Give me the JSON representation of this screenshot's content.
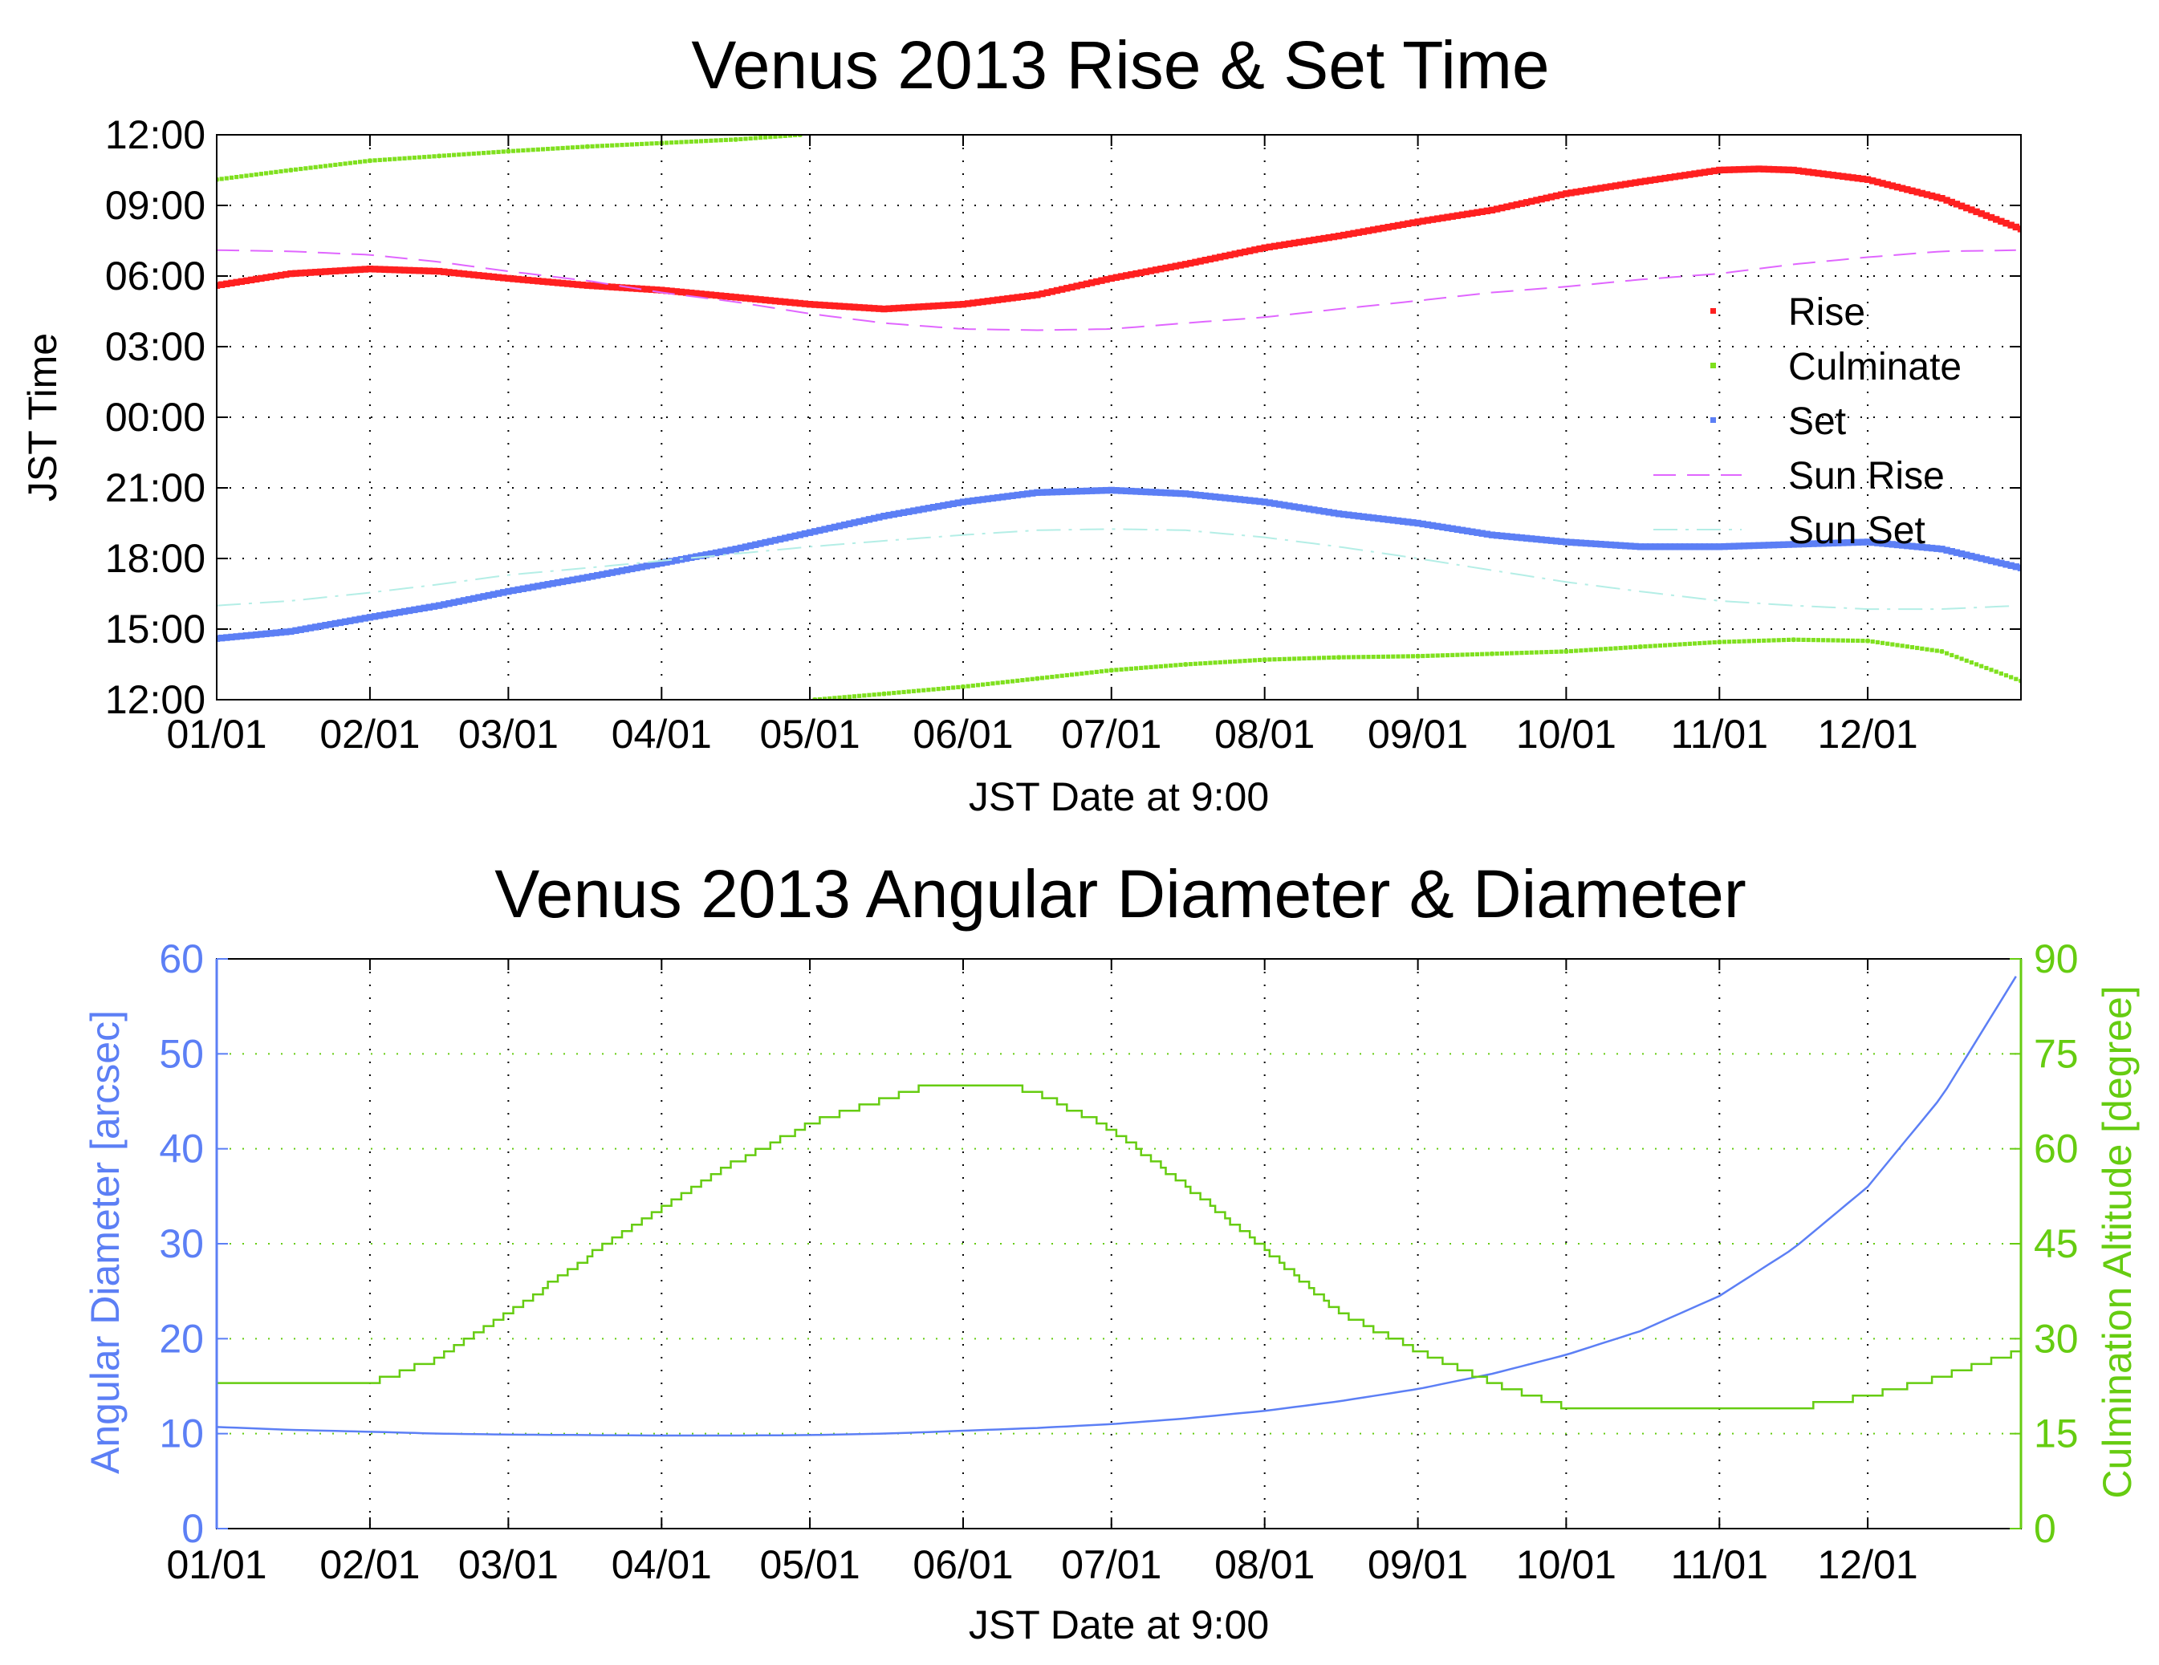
{
  "chart_data": [
    {
      "type": "line",
      "title": "Venus 2013 Rise & Set Time",
      "xlabel": "JST Date at 9:00",
      "ylabel": "JST Time",
      "x_tick_labels": [
        "01/01",
        "02/01",
        "03/01",
        "04/01",
        "05/01",
        "06/01",
        "07/01",
        "08/01",
        "09/01",
        "10/01",
        "11/01",
        "12/01"
      ],
      "x_tick_days": [
        0,
        31,
        59,
        90,
        120,
        151,
        181,
        212,
        243,
        273,
        304,
        334
      ],
      "x_range_days": [
        0,
        365
      ],
      "y_axis_note": "time of day; axis runs from 12:00 (bottom) through 00:00 up to 12:00 (top)",
      "y_tick_labels": [
        "12:00",
        "15:00",
        "18:00",
        "21:00",
        "00:00",
        "03:00",
        "06:00",
        "09:00",
        "12:00"
      ],
      "y_range_hours": [
        12,
        36
      ],
      "grid": true,
      "legend_position": "right",
      "series": [
        {
          "name": "Rise",
          "color": "#ff2020",
          "style": "markers",
          "x_days": [
            0,
            15,
            31,
            45,
            59,
            75,
            90,
            105,
            120,
            135,
            151,
            166,
            181,
            196,
            212,
            227,
            243,
            258,
            273,
            288,
            304,
            312,
            319,
            334,
            349,
            365
          ],
          "y_hours": [
            29.6,
            30.1,
            30.3,
            30.2,
            29.9,
            29.6,
            29.4,
            29.1,
            28.8,
            28.6,
            28.8,
            29.2,
            29.9,
            30.5,
            31.2,
            31.7,
            32.3,
            32.8,
            33.5,
            34.0,
            34.5,
            34.55,
            34.5,
            34.1,
            33.3,
            32.0
          ]
        },
        {
          "name": "Culminate",
          "color": "#7fe01e",
          "style": "markers",
          "x_days": [
            0,
            15,
            31,
            45,
            59,
            75,
            90,
            105,
            118,
            121,
            135,
            151,
            166,
            181,
            196,
            212,
            227,
            243,
            258,
            273,
            288,
            304,
            319,
            334,
            349,
            365
          ],
          "y_hours": [
            34.1,
            34.5,
            34.9,
            35.1,
            35.3,
            35.5,
            35.65,
            35.8,
            36.0,
            12.0,
            12.25,
            12.55,
            12.9,
            13.25,
            13.5,
            13.7,
            13.8,
            13.85,
            13.95,
            14.05,
            14.25,
            14.45,
            14.55,
            14.5,
            14.05,
            12.8
          ]
        },
        {
          "name": "Set",
          "color": "#5c7ff5",
          "style": "markers",
          "x_days": [
            0,
            15,
            31,
            45,
            59,
            75,
            90,
            105,
            120,
            135,
            151,
            166,
            181,
            196,
            212,
            227,
            243,
            258,
            273,
            288,
            304,
            319,
            334,
            349,
            365
          ],
          "y_hours": [
            14.6,
            14.9,
            15.5,
            16.0,
            16.6,
            17.2,
            17.8,
            18.4,
            19.1,
            19.8,
            20.4,
            20.8,
            20.9,
            20.75,
            20.4,
            19.9,
            19.5,
            19.0,
            18.7,
            18.5,
            18.5,
            18.6,
            18.7,
            18.4,
            17.6
          ]
        },
        {
          "name": "Sun Rise",
          "color": "#e066ff",
          "style": "dashed",
          "x_days": [
            0,
            15,
            31,
            45,
            59,
            75,
            90,
            105,
            120,
            135,
            151,
            166,
            181,
            196,
            212,
            227,
            243,
            258,
            273,
            288,
            304,
            319,
            334,
            349,
            365
          ],
          "y_hours": [
            31.1,
            31.05,
            30.9,
            30.6,
            30.2,
            29.8,
            29.3,
            28.9,
            28.4,
            28.0,
            27.75,
            27.7,
            27.75,
            28.0,
            28.25,
            28.6,
            28.95,
            29.3,
            29.55,
            29.85,
            30.1,
            30.5,
            30.8,
            31.05,
            31.1
          ]
        },
        {
          "name": "Sun Set",
          "color": "#b4eee6",
          "style": "dashdot",
          "x_days": [
            0,
            15,
            31,
            45,
            59,
            75,
            90,
            105,
            120,
            135,
            151,
            166,
            181,
            196,
            212,
            227,
            243,
            258,
            273,
            288,
            304,
            319,
            334,
            349,
            365
          ],
          "y_hours": [
            16.0,
            16.2,
            16.55,
            16.9,
            17.3,
            17.6,
            17.9,
            18.2,
            18.5,
            18.75,
            19.0,
            19.2,
            19.25,
            19.2,
            18.9,
            18.5,
            18.0,
            17.5,
            17.0,
            16.6,
            16.2,
            16.0,
            15.85,
            15.85,
            16.0
          ]
        }
      ]
    },
    {
      "type": "line",
      "title": "Venus 2013 Angular Diameter & Diameter",
      "xlabel": "JST Date at 9:00",
      "ylabel": "Angular Diameter [arcsec]",
      "y2label": "Culmination Altitude [degree]",
      "x_tick_labels": [
        "01/01",
        "02/01",
        "03/01",
        "04/01",
        "05/01",
        "06/01",
        "07/01",
        "08/01",
        "09/01",
        "10/01",
        "11/01",
        "12/01"
      ],
      "x_tick_days": [
        0,
        31,
        59,
        90,
        120,
        151,
        181,
        212,
        243,
        273,
        304,
        334
      ],
      "x_range_days": [
        0,
        365
      ],
      "ylim": [
        0,
        60
      ],
      "y_ticks": [
        0,
        10,
        20,
        30,
        40,
        50,
        60
      ],
      "y2lim": [
        0,
        90
      ],
      "y2_ticks": [
        0,
        15,
        30,
        45,
        60,
        75,
        90
      ],
      "grid": true,
      "colors": {
        "left_axis": "#5c7ff5",
        "right_axis": "#66cc11"
      },
      "series": [
        {
          "name": "",
          "axis": "left",
          "color": "#5c7ff5",
          "style": "solid",
          "x_days": [
            0,
            15,
            31,
            45,
            59,
            75,
            90,
            105,
            120,
            135,
            151,
            166,
            181,
            196,
            212,
            227,
            243,
            258,
            273,
            288,
            304,
            319,
            334,
            349,
            365
          ],
          "values": [
            10.7,
            10.4,
            10.2,
            10.0,
            9.9,
            9.85,
            9.8,
            9.8,
            9.85,
            10.0,
            10.3,
            10.6,
            11.0,
            11.6,
            12.4,
            13.4,
            14.7,
            16.3,
            18.3,
            20.8,
            24.5,
            29.5,
            36.0,
            45.5,
            59.0
          ]
        },
        {
          "name": "",
          "axis": "right",
          "color": "#66cc11",
          "style": "steps",
          "x_days": [
            0,
            15,
            31,
            45,
            59,
            75,
            90,
            105,
            120,
            135,
            144,
            150,
            155,
            160,
            165,
            181,
            196,
            212,
            227,
            243,
            258,
            273,
            288,
            304,
            319,
            334,
            349,
            365
          ],
          "values": [
            23,
            23,
            23,
            27,
            34,
            43,
            51,
            58,
            64,
            68,
            70,
            70,
            70,
            70,
            69,
            63,
            54,
            44,
            34,
            28,
            23,
            19,
            19,
            19,
            19,
            21,
            24,
            28
          ]
        }
      ]
    }
  ]
}
